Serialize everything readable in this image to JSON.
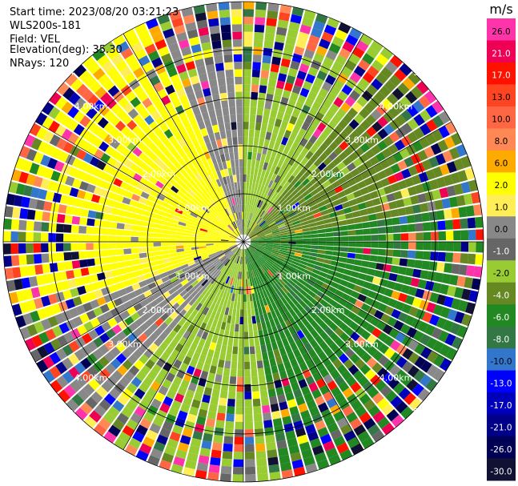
{
  "header": {
    "start_time": "Start time: 2023/08/20 03:21:23",
    "device": "WLS200s-181",
    "field": "Field: VEL",
    "elevation": "Elevation(deg): 35.30",
    "nrays": "NRays: 120"
  },
  "chart_data": {
    "type": "heatmap",
    "projection": "polar-ppi",
    "rays": 120,
    "range_rings_km": [
      1,
      2,
      3,
      4,
      5
    ],
    "max_range_km": 5.0,
    "ring_labels": [
      "1.00km",
      "2.00km",
      "3.00km",
      "4.00km",
      "5.00km"
    ],
    "colorbar": {
      "unit": "m/s",
      "ticks": [
        "26.0",
        "21.0",
        "17.0",
        "13.0",
        "10.0",
        "8.0",
        "6.0",
        "2.0",
        "1.0",
        "0.0",
        "-1.0",
        "-2.0",
        "-4.0",
        "-6.0",
        "-8.0",
        "-10.0",
        "-13.0",
        "-17.0",
        "-21.0",
        "-26.0",
        "-30.0"
      ],
      "colors": [
        "#ff33aa",
        "#ee0055",
        "#ff1100",
        "#ff4422",
        "#ff6644",
        "#ff8855",
        "#ffaa00",
        "#ffff00",
        "#ffee55",
        "#888888",
        "#666666",
        "#99cc33",
        "#668822",
        "#228822",
        "#337744",
        "#3377cc",
        "#0000ff",
        "#0000bb",
        "#000088",
        "#000055",
        "#111133"
      ]
    },
    "sectors": [
      {
        "azimuth_from": 0,
        "azimuth_to": 40,
        "value": -2.0
      },
      {
        "azimuth_from": 40,
        "azimuth_to": 80,
        "value": -4.0
      },
      {
        "azimuth_from": 80,
        "azimuth_to": 170,
        "value": -6.0
      },
      {
        "azimuth_from": 170,
        "azimuth_to": 220,
        "value": -2.0
      },
      {
        "azimuth_from": 220,
        "azimuth_to": 250,
        "value": 0.0
      },
      {
        "azimuth_from": 250,
        "azimuth_to": 340,
        "value": 2.0
      },
      {
        "azimuth_from": 340,
        "azimuth_to": 360,
        "value": 0.0
      }
    ]
  }
}
